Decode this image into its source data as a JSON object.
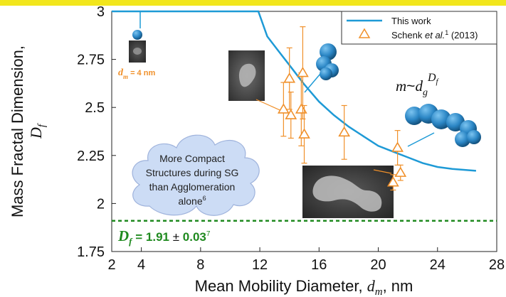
{
  "colors": {
    "model_line": "#1e9ad6",
    "measured_marker": "#f0902a",
    "limit_line": "#1f8a1f",
    "df_label": "#1f8a1f",
    "cloud_fill": "#ccdcf5",
    "cloud_stroke": "#9fb3dc",
    "sphere": "#2b86c5",
    "top_bar": "#f2e61c"
  },
  "chart_data": {
    "type": "line",
    "xlabel_prefix": "Mean Mobility Diameter, ",
    "xlabel_symbol": "d",
    "xlabel_sub": "m",
    "xlabel_suffix": ", nm",
    "ylabel_line1": "Mass Fractal Dimension,",
    "ylabel_symbol": "D",
    "ylabel_sub": "f",
    "xlim": [
      2,
      28
    ],
    "ylim": [
      1.75,
      3
    ],
    "xticks": [
      "2",
      "4",
      "8",
      "12",
      "16",
      "20",
      "24",
      "28"
    ],
    "xtick_values": [
      2,
      4,
      8,
      12,
      16,
      20,
      24,
      28
    ],
    "yticks": [
      "1.75",
      "2",
      "2.25",
      "2.5",
      "2.75",
      "3"
    ],
    "ytick_values": [
      1.75,
      2,
      2.25,
      2.5,
      2.75,
      3
    ],
    "legend_position": "top-right",
    "series": [
      {
        "name": "This work",
        "kind": "line",
        "x": [
          2,
          11.9,
          12.5,
          13.2,
          14.0,
          15.0,
          16.0,
          17.0,
          18.0,
          19.0,
          20.0,
          21.0,
          22.0,
          23.0,
          24.0,
          25.0,
          26.6
        ],
        "y": [
          3.0,
          3.0,
          2.87,
          2.8,
          2.72,
          2.62,
          2.53,
          2.46,
          2.4,
          2.35,
          2.3,
          2.27,
          2.24,
          2.21,
          2.19,
          2.18,
          2.17
        ]
      },
      {
        "name": "Schenk",
        "name_suffix": "et al.",
        "ref": "1",
        "year": "(2013)",
        "kind": "scatter-errorbar",
        "points": [
          {
            "x": 13.6,
            "y": 2.49,
            "err": 0.14
          },
          {
            "x": 14.0,
            "y": 2.65,
            "err": 0.16
          },
          {
            "x": 14.1,
            "y": 2.46,
            "err": 0.12
          },
          {
            "x": 14.8,
            "y": 2.49,
            "err": 0.19
          },
          {
            "x": 14.9,
            "y": 2.68,
            "err": 0.24
          },
          {
            "x": 15.0,
            "y": 2.36,
            "err": 0.15
          },
          {
            "x": 17.7,
            "y": 2.37,
            "err": 0.14
          },
          {
            "x": 21.0,
            "y": 2.11,
            "err": 0.04
          },
          {
            "x": 21.3,
            "y": 2.29,
            "err": 0.09
          },
          {
            "x": 21.5,
            "y": 2.16,
            "err": 0.04
          }
        ]
      }
    ],
    "limit_line": {
      "y": 1.91
    },
    "annotations": {
      "dm_symbol": "d",
      "dm_sub": "m",
      "dm_text": " = 4 nm",
      "cloud_lines": [
        "More Compact",
        "Structures during SG",
        "than Agglomeration",
        "alone"
      ],
      "cloud_ref": "6",
      "formula_m": "m",
      "formula_tilde": "~",
      "formula_d": "d",
      "formula_sub": "g",
      "formula_sup_D": "D",
      "formula_sup_f": "f",
      "df_symbol": "D",
      "df_sub": "f",
      "df_text": " = 1.91 ",
      "df_pm": "±",
      "df_value": " 0.03",
      "df_ref": "7"
    }
  }
}
